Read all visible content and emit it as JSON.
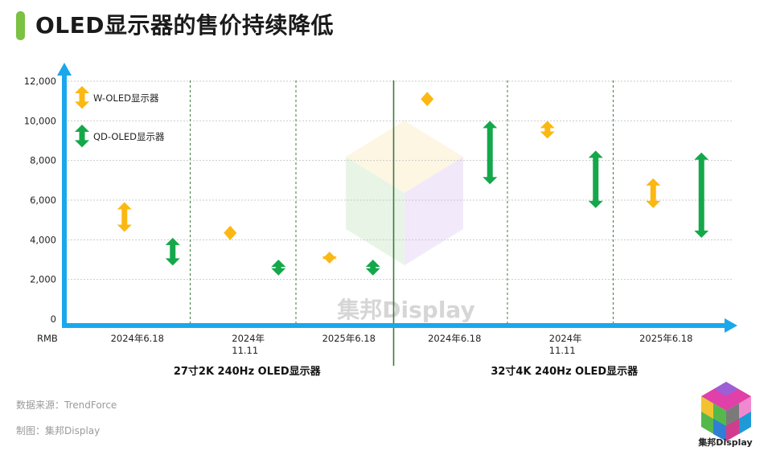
{
  "title": "OLED显示器的售价持续降低",
  "footer": {
    "source": "数据来源：TrendForce",
    "maker": "制图：集邦Display"
  },
  "logo": {
    "text": "集邦Display"
  },
  "watermark": "集邦Display",
  "chart_data": {
    "type": "range",
    "unit_label": "RMB",
    "ylim": [
      0,
      12000
    ],
    "yticks": [
      "0",
      "2,000",
      "4,000",
      "6,000",
      "8,000",
      "10,000",
      "12,000"
    ],
    "ytick_values": [
      0,
      2000,
      4000,
      6000,
      8000,
      10000,
      12000
    ],
    "grid": true,
    "legend_position": "top-left",
    "categories": [
      "2024年6.18",
      "2024年11.11",
      "2025年6.18",
      "2024年6.18",
      "2024年11.11",
      "2025年6.18"
    ],
    "category_labels": [
      [
        "2024年6.18"
      ],
      [
        "2024年",
        "11.11"
      ],
      [
        "2025年6.18"
      ],
      [
        "2024年6.18"
      ],
      [
        "2024年",
        "11.11"
      ],
      [
        "2025年6.18"
      ]
    ],
    "groups": [
      {
        "name": "27寸2K 240Hz OLED显示器",
        "categories": [
          0,
          1,
          2
        ]
      },
      {
        "name": "32寸4K 240Hz OLED显示器",
        "categories": [
          3,
          4,
          5
        ]
      }
    ],
    "series": [
      {
        "name": "W-OLED显示器",
        "color": "#fbb813",
        "ranges": [
          [
            4400,
            5900
          ],
          [
            4100,
            4600
          ],
          [
            2800,
            3400
          ],
          [
            11000,
            11200
          ],
          [
            9100,
            10000
          ],
          [
            5600,
            7100
          ]
        ]
      },
      {
        "name": "QD-OLED显示器",
        "color": "#14a84a",
        "ranges": [
          [
            2700,
            4100
          ],
          [
            2200,
            3000
          ],
          null,
          [
            6800,
            10000
          ],
          [
            5600,
            8500
          ],
          [
            4100,
            8400
          ]
        ]
      }
    ]
  },
  "colors": {
    "axis": "#1aa7ec",
    "accent": "#7bc142",
    "grid": "#c9c9c9",
    "divider": "#3d7a3d"
  }
}
